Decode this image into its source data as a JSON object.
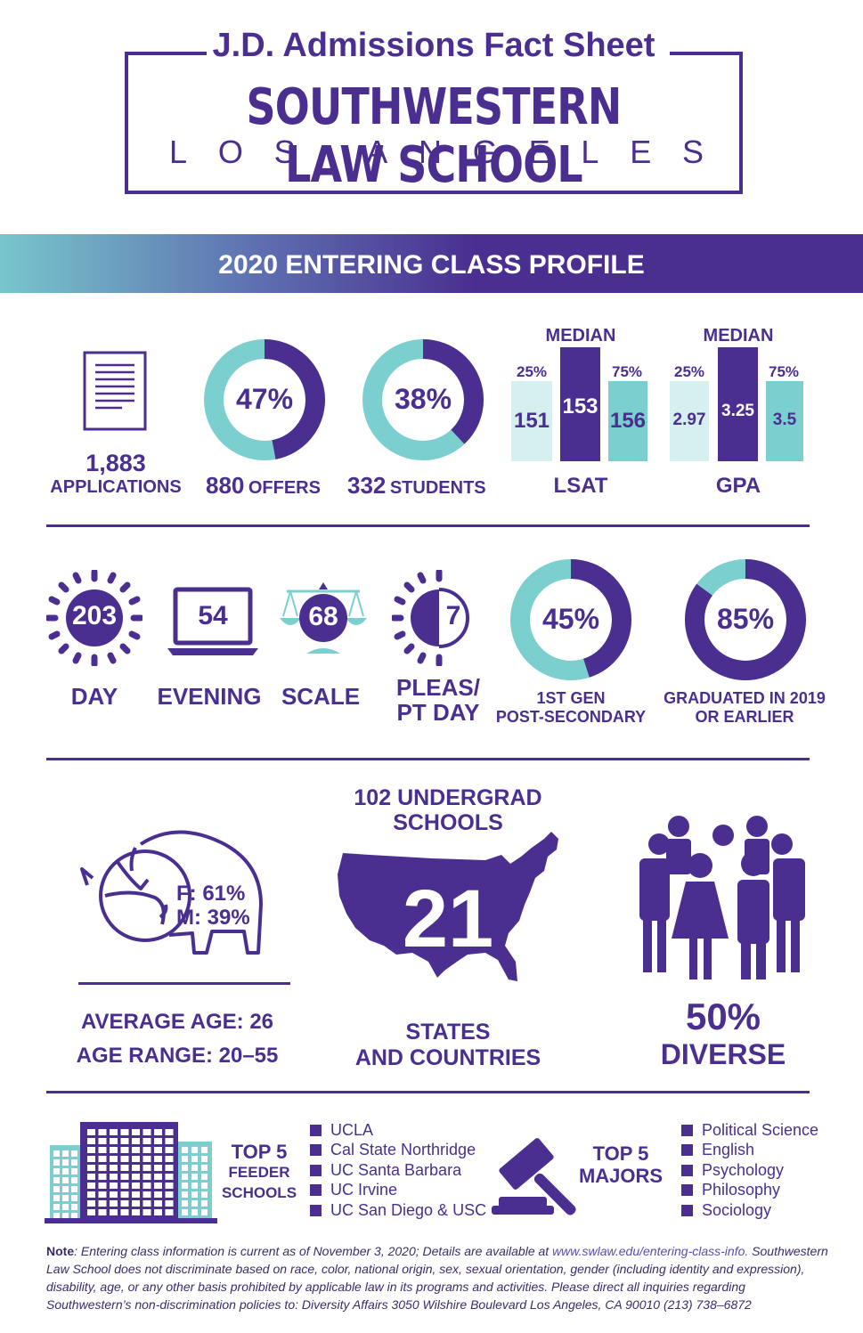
{
  "header": {
    "title": "J.D. Admissions Fact Sheet",
    "school": "SOUTHWESTERN LAW SCHOOL",
    "city_letters": [
      "L",
      "O",
      "S",
      "A",
      "N",
      "G",
      "E",
      "L",
      "E",
      "S"
    ]
  },
  "banner": {
    "title": "2020 ENTERING CLASS PROFILE"
  },
  "colors": {
    "purple": "#4a2f91",
    "teal": "#7ccfcf",
    "light_teal": "#d6efef",
    "white": "#ffffff"
  },
  "row1": {
    "applications": {
      "value": "1,883",
      "label": "APPLICATIONS",
      "icon": "document-icon"
    },
    "offers": {
      "percent": "47%",
      "fraction": 0.47,
      "value": "880",
      "label": "OFFERS"
    },
    "students": {
      "percent": "38%",
      "fraction": 0.38,
      "value": "332",
      "label": "STUDENTS"
    },
    "lsat": {
      "median_label": "MEDIAN",
      "p25_label": "25%",
      "p75_label": "75%",
      "p25": "151",
      "median": "153",
      "p75": "156",
      "label": "LSAT"
    },
    "gpa": {
      "median_label": "MEDIAN",
      "p25_label": "25%",
      "p75_label": "75%",
      "p25": "2.97",
      "median": "3.25",
      "p75": "3.5",
      "label": "GPA"
    }
  },
  "row2": {
    "day": {
      "value": "203",
      "label": "DAY",
      "icon": "sun-icon"
    },
    "evening": {
      "value": "54",
      "label": "EVENING",
      "icon": "laptop-icon"
    },
    "scale": {
      "value": "68",
      "label": "SCALE",
      "icon": "scales-icon"
    },
    "pleas": {
      "value": "7",
      "label_line1": "PLEAS/",
      "label_line2": "PT DAY",
      "icon": "half-sun-icon"
    },
    "first_gen": {
      "percent": "45%",
      "fraction": 0.45,
      "label_line1": "1ST GEN",
      "label_line2": "POST-SECONDARY"
    },
    "graduated": {
      "percent": "85%",
      "fraction": 0.85,
      "label_line1": "GRADUATED IN 2019",
      "label_line2": "OR EARLIER"
    }
  },
  "row3": {
    "gender": {
      "female": "F: 61%",
      "male": "M: 39%",
      "icon": "bison-icon"
    },
    "age_avg": "AVERAGE AGE: 26",
    "age_range": "AGE RANGE: 20–55",
    "undergrad": {
      "line1": "102 UNDERGRAD",
      "line2": "SCHOOLS"
    },
    "states": {
      "value": "21",
      "line1": "STATES",
      "line2": "AND COUNTRIES",
      "icon": "usa-map-icon"
    },
    "diverse": {
      "value": "50%",
      "label": "DIVERSE",
      "icon": "people-icon"
    }
  },
  "row4": {
    "feeder": {
      "title_line1": "TOP 5",
      "title_line2": "FEEDER",
      "title_line3": "SCHOOLS",
      "items": [
        "UCLA",
        "Cal State Northridge",
        "UC Santa Barbara",
        "UC Irvine",
        "UC San Diego & USC"
      ]
    },
    "majors": {
      "title_line1": "TOP 5",
      "title_line2": "MAJORS",
      "items": [
        "Political Science",
        "English",
        "Psychology",
        "Philosophy",
        "Sociology"
      ]
    }
  },
  "note": {
    "label": "Note",
    "line1": ": Entering class information is current as of November 3, 2020; Details are available at ",
    "link": "www.swlaw.edu/entering-class-info.",
    "line2": "Southwestern Law School does not discriminate based on race, color, national origin, sex, sexual orientation, gender (including identity and expression), disability, age, or any other basis prohibited by applicable law in its programs and activities. Please direct all inquiries regarding Southwestern’s non-discrimination policies to: Diversity Affairs 3050 Wilshire Boulevard Los Angeles, CA 90010  (213) 738–6872"
  },
  "chart_data": [
    {
      "type": "pie",
      "title": "",
      "categories": [
        "OFFERS",
        ""
      ],
      "values": [
        47,
        53
      ]
    },
    {
      "type": "pie",
      "title": "",
      "categories": [
        "STUDENTS",
        ""
      ],
      "values": [
        38,
        62
      ]
    },
    {
      "type": "bar",
      "title": "LSAT",
      "categories": [
        "25%",
        "MEDIAN",
        "75%"
      ],
      "values": [
        151,
        153,
        156
      ]
    },
    {
      "type": "bar",
      "title": "GPA",
      "categories": [
        "25%",
        "MEDIAN",
        "75%"
      ],
      "values": [
        2.97,
        3.25,
        3.5
      ]
    },
    {
      "type": "pie",
      "title": "",
      "categories": [
        "1ST GEN POST-SECONDARY",
        ""
      ],
      "values": [
        45,
        55
      ]
    },
    {
      "type": "pie",
      "title": "",
      "categories": [
        "GRADUATED IN 2019 OR EARLIER",
        ""
      ],
      "values": [
        85,
        15
      ]
    }
  ]
}
